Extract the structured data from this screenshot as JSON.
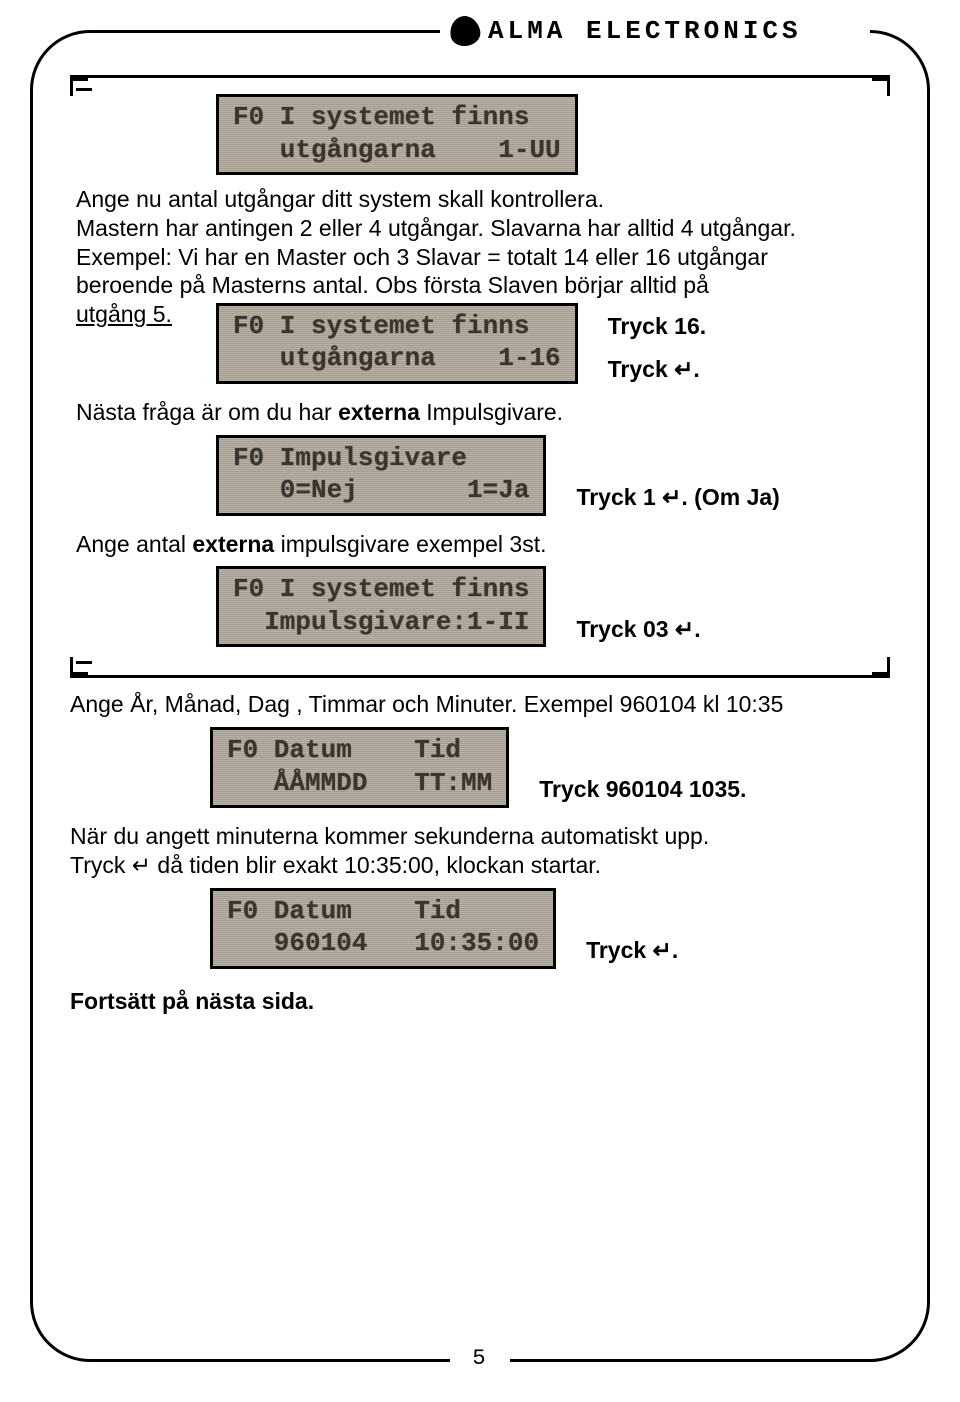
{
  "brand": "ALMA ELECTRONICS",
  "page_number": "5",
  "enter_glyph": "↵",
  "bracketed": {
    "lcd1": {
      "line1": "F0 I systemet finns",
      "line2": "   utgångarna    1-UU"
    },
    "para1_l1": "Ange nu antal utgångar ditt system skall kontrollera.",
    "para1_l2": "Mastern har antingen 2 eller 4 utgångar. Slavarna har alltid 4 utgångar.",
    "para1_l3": "Exempel: Vi har en Master och 3 Slavar = totalt 14 eller 16 utgångar",
    "para1_l4": "beroende på Masterns antal. Obs första Slaven börjar alltid på",
    "para1_l5a": "utgång 5.",
    "side1_top": "Tryck 16.",
    "side1_bot": "Tryck ↵.",
    "lcd2": {
      "line1": "F0 I systemet finns",
      "line2": "   utgångarna    1-16"
    },
    "para2": "Nästa fråga är om du har ",
    "para2_bold": "externa",
    "para2_tail": " Impulsgivare.",
    "lcd3": {
      "line1": "F0 Impulsgivare",
      "line2": "   0=Nej       1=Ja"
    },
    "side3": "Tryck 1 ↵. (Om Ja)",
    "para3": "Ange antal ",
    "para3_bold": "externa",
    "para3_tail": " impulsgivare exempel 3st.",
    "lcd4": {
      "line1": "F0 I systemet finns",
      "line2": "  Impulsgivare:1-II"
    },
    "side4": "Tryck 03 ↵."
  },
  "after": {
    "para4": "Ange År, Månad, Dag , Timmar och Minuter. Exempel 960104 kl 10:35",
    "lcd5": {
      "line1": "F0 Datum    Tid",
      "line2": "   ÅÅMMDD   TT:MM"
    },
    "side5": "Tryck 960104 1035.",
    "para5_l1": "När du angett minuterna kommer sekunderna automatiskt upp.",
    "para5_l2": "Tryck ↵ då tiden blir exakt 10:35:00, klockan startar.",
    "lcd6": {
      "line1": "F0 Datum    Tid",
      "line2": "   960104   10:35:00"
    },
    "side6": "Tryck ↵.",
    "continue": "Fortsätt på nästa sida."
  }
}
